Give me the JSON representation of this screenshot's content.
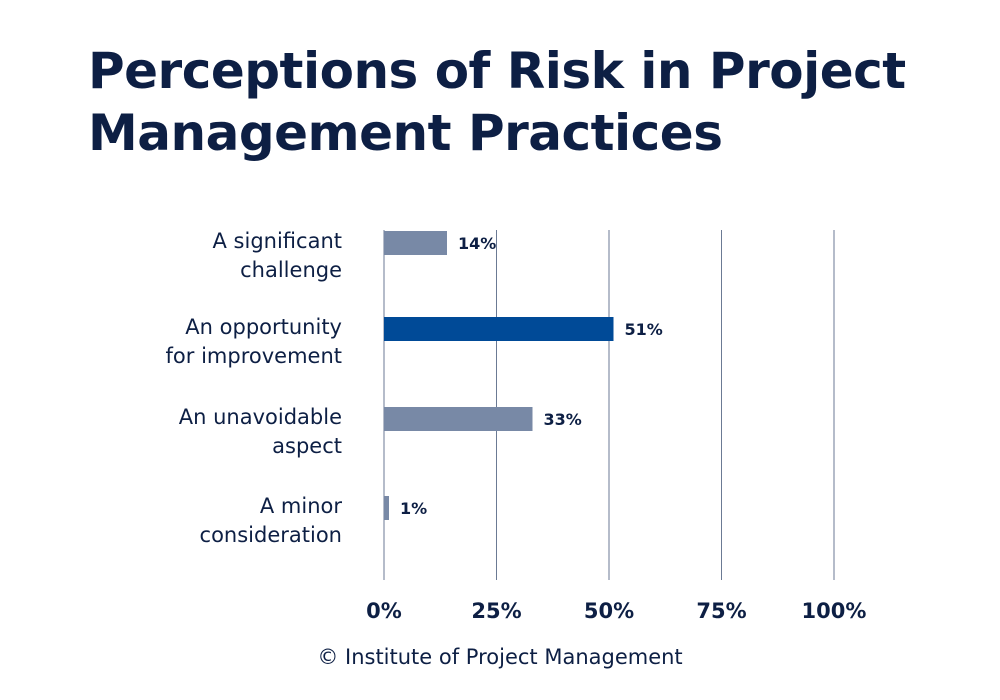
{
  "title_lines": [
    "Perceptions of Risk in Project",
    "Management Practices"
  ],
  "footer": "© Institute of Project Management",
  "colors": {
    "text": "#0d1f44",
    "highlight": "#004a97",
    "bar": "#7889a6",
    "grid": "#6b7a94"
  },
  "chart_data": {
    "type": "bar",
    "orientation": "horizontal",
    "title": "Perceptions of Risk in Project Management Practices",
    "categories": [
      [
        "A significant",
        "challenge"
      ],
      [
        "An opportunity",
        "for improvement"
      ],
      [
        "An unavoidable",
        "aspect"
      ],
      [
        "A minor",
        "consideration"
      ]
    ],
    "values": [
      14,
      51,
      33,
      1
    ],
    "value_labels": [
      "14%",
      "51%",
      "33%",
      "1%"
    ],
    "highlight_index": 1,
    "xlim": [
      0,
      100
    ],
    "xticks": [
      0,
      25,
      50,
      75,
      100
    ],
    "xtick_labels": [
      "0%",
      "25%",
      "50%",
      "75%",
      "100%"
    ],
    "grid": "vertical",
    "legend": "none"
  }
}
